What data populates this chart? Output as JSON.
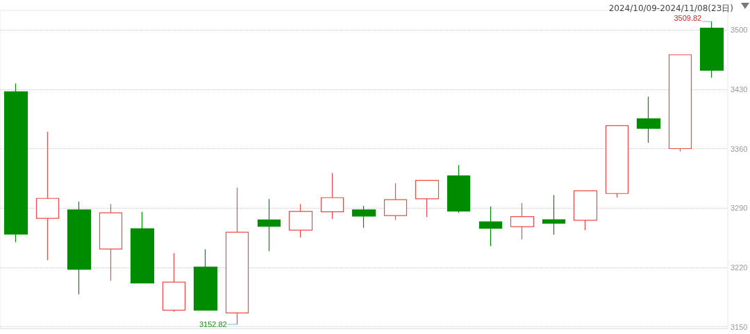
{
  "chart_data": {
    "type": "candlestick",
    "title": "2024/10/09-2024/11/08(23日)",
    "categories": [
      null,
      null,
      null,
      null,
      null,
      null,
      null,
      null,
      null,
      null,
      null,
      null,
      null,
      null,
      null,
      null,
      null,
      null,
      null,
      null,
      null,
      null,
      null
    ],
    "ohlc": [
      [
        3427.2,
        3436.8,
        3249.8,
        3259.1
      ],
      [
        3277.8,
        3379.8,
        3228.4,
        3301.4
      ],
      [
        3287.8,
        3297.6,
        3188.3,
        3217.8
      ],
      [
        3241.6,
        3294.6,
        3204.2,
        3284.3
      ],
      [
        3265.6,
        3285.4,
        3201.5,
        3201.5
      ],
      [
        3169.5,
        3236.8,
        3167.9,
        3202.6
      ],
      [
        3220.5,
        3241.4,
        3169.5,
        3169.5
      ],
      [
        3166.3,
        3313.9,
        3152.82,
        3261.5
      ],
      [
        3275.9,
        3300.6,
        3239.0,
        3268.3
      ],
      [
        3263.9,
        3294.6,
        3255.2,
        3285.9
      ],
      [
        3285.6,
        3331.2,
        3276.9,
        3302.2
      ],
      [
        3287.8,
        3292.7,
        3266.7,
        3280.5
      ],
      [
        3281.0,
        3319.1,
        3275.9,
        3299.8
      ],
      [
        3300.8,
        3322.6,
        3279.4,
        3322.6
      ],
      [
        3327.9,
        3340.7,
        3284.3,
        3286.4
      ],
      [
        3273.7,
        3291.9,
        3245.0,
        3266.1
      ],
      [
        3268.0,
        3295.9,
        3252.9,
        3279.9
      ],
      [
        3276.2,
        3305.2,
        3258.5,
        3272.1
      ],
      [
        3275.6,
        3310.3,
        3263.9,
        3310.3
      ],
      [
        3307.1,
        3387.1,
        3302.5,
        3387.1
      ],
      [
        3395.2,
        3421.3,
        3367.0,
        3383.9
      ],
      [
        3360.0,
        3470.7,
        3356.7,
        3470.7
      ],
      [
        3502.1,
        3509.82,
        3443.5,
        3452.5
      ]
    ],
    "colors": [
      "#008c00",
      "#f04848",
      "#008c00",
      "#f04848",
      "#008c00",
      "#f04848",
      "#008c00",
      "#f04848",
      "#008c00",
      "#f04848",
      "#f04848",
      "#008c00",
      "#f04848",
      "#f04848",
      "#008c00",
      "#008c00",
      "#f04848",
      "#008c00",
      "#f04848",
      "#f04848",
      "#008c00",
      "#f04848",
      "#008c00"
    ],
    "ylim": [
      3148,
      3523
    ],
    "yticks": [
      3150,
      3220,
      3290,
      3360,
      3430,
      3500
    ],
    "grid": "y",
    "annotations": [
      "3509.82",
      "3152.82"
    ]
  }
}
